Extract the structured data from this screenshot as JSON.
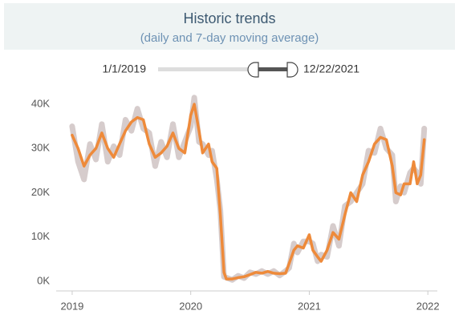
{
  "header": {
    "title": "Historic trends",
    "subtitle": "(daily and 7-day moving average)"
  },
  "slider": {
    "start_label": "1/1/2019",
    "end_label": "12/22/2021"
  },
  "chart_data": {
    "type": "line",
    "x": [
      2019.0,
      2019.05,
      2019.1,
      2019.15,
      2019.2,
      2019.25,
      2019.3,
      2019.35,
      2019.4,
      2019.45,
      2019.5,
      2019.55,
      2019.6,
      2019.65,
      2019.7,
      2019.75,
      2019.8,
      2019.85,
      2019.9,
      2019.95,
      2020.0,
      2020.03,
      2020.07,
      2020.1,
      2020.15,
      2020.18,
      2020.22,
      2020.25,
      2020.28,
      2020.3,
      2020.35,
      2020.4,
      2020.45,
      2020.5,
      2020.55,
      2020.6,
      2020.65,
      2020.7,
      2020.75,
      2020.8,
      2020.83,
      2020.87,
      2020.9,
      2020.95,
      2021.0,
      2021.03,
      2021.07,
      2021.1,
      2021.15,
      2021.2,
      2021.25,
      2021.3,
      2021.35,
      2021.4,
      2021.45,
      2021.5,
      2021.55,
      2021.6,
      2021.65,
      2021.7,
      2021.73,
      2021.77,
      2021.8,
      2021.85,
      2021.88,
      2021.91,
      2021.94,
      2021.97
    ],
    "series": [
      {
        "color": "#d6cccc",
        "values": [
          35000,
          27000,
          23000,
          31000,
          27500,
          35500,
          27000,
          30500,
          28500,
          36500,
          34000,
          39000,
          34500,
          33500,
          26000,
          31500,
          28000,
          35500,
          28000,
          31500,
          35000,
          41500,
          31500,
          31000,
          28500,
          29500,
          23000,
          16000,
          1000,
          800,
          300,
          1200,
          700,
          2000,
          1600,
          2300,
          1600,
          2300,
          1300,
          2300,
          3000,
          8500,
          6500,
          9000,
          9000,
          8500,
          4500,
          6000,
          5500,
          12500,
          8000,
          17000,
          18000,
          20000,
          22000,
          29500,
          29000,
          34500,
          30000,
          28500,
          18000,
          21500,
          20000,
          24500,
          25500,
          24500,
          22000,
          34500
        ]
      },
      {
        "color": "#ee8a3a",
        "values": [
          33000,
          30000,
          26000,
          28500,
          30000,
          33500,
          30000,
          28000,
          31000,
          34000,
          36000,
          37000,
          36500,
          31000,
          28000,
          29000,
          30500,
          33500,
          30000,
          29000,
          37500,
          40000,
          34000,
          29000,
          31000,
          27000,
          25500,
          15000,
          2000,
          500,
          500,
          800,
          1000,
          1500,
          2000,
          1800,
          2200,
          1800,
          1700,
          1800,
          4000,
          7000,
          8000,
          7500,
          10500,
          7000,
          5500,
          4500,
          7000,
          11000,
          9500,
          15000,
          20000,
          18000,
          24000,
          27000,
          31000,
          32500,
          32000,
          26000,
          20000,
          19500,
          22000,
          22000,
          27000,
          22000,
          24000,
          32000
        ]
      }
    ],
    "xlim": [
      2018.865,
      2022.08
    ],
    "xticks": [
      2019,
      2020,
      2021,
      2022
    ],
    "ylim": [
      -2200,
      42000
    ],
    "yticks": [
      {
        "value": 0,
        "label": "0K"
      },
      {
        "value": 10000,
        "label": "10K"
      },
      {
        "value": 20000,
        "label": "20K"
      },
      {
        "value": 30000,
        "label": "30K"
      },
      {
        "value": 40000,
        "label": "40K"
      }
    ]
  }
}
